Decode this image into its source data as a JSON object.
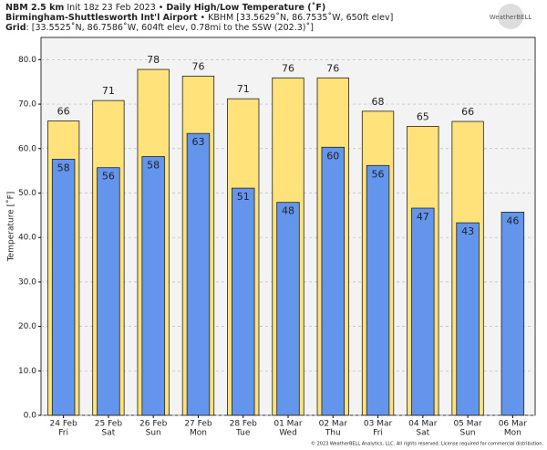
{
  "chart_data": {
    "type": "bar",
    "title_parts": [
      [
        {
          "text": "NBM 2.5 km",
          "bold": true
        },
        {
          "text": " Init 18z 23 Feb 2023 • ",
          "bold": false
        },
        {
          "text": "Daily High/Low Temperature (˚F)",
          "bold": true
        }
      ],
      [
        {
          "text": "Birmingham-Shuttlesworth Int'l Airport",
          "bold": true
        },
        {
          "text": " • KBHM [33.5629˚N, 86.7535˚W, 650ft elev]",
          "bold": false
        }
      ],
      [
        {
          "text": "Grid",
          "bold": true
        },
        {
          "text": ": [33.5525˚N, 86.7586˚W, 604ft elev, 0.78mi to the SSW (202.3)˚]",
          "bold": false
        }
      ]
    ],
    "logo": "WeatherBELL",
    "y_label": "Temperature [˚F]",
    "footer": "© 2023 WeatherBELL Analytics, LLC. All rights reserved. License required for commercial distribution.",
    "categories": [
      "24 Feb",
      "25 Feb",
      "26 Feb",
      "27 Feb",
      "28 Feb",
      "01 Mar",
      "02 Mar",
      "03 Mar",
      "04 Mar",
      "05 Mar",
      "06 Mar"
    ],
    "weekdays": [
      "Fri",
      "Sat",
      "Sun",
      "Mon",
      "Tue",
      "Wed",
      "Thu",
      "Fri",
      "Sat",
      "Sun",
      "Mon"
    ],
    "series": [
      {
        "name": "High",
        "color": "#ffe27a",
        "values": [
          66.2,
          70.8,
          77.8,
          76.3,
          71.2,
          75.9,
          75.9,
          68.4,
          65.0,
          66.1,
          null
        ],
        "value_labels": [
          "66",
          "71",
          "78",
          "76",
          "71",
          "76",
          "76",
          "68",
          "65",
          "66",
          null
        ]
      },
      {
        "name": "Low",
        "color": "#6495ed",
        "values": [
          57.6,
          55.7,
          58.2,
          63.4,
          51.1,
          47.9,
          60.3,
          56.2,
          46.6,
          43.3,
          45.7
        ],
        "value_labels": [
          "58",
          "56",
          "58",
          "63",
          "51",
          "48",
          "60",
          "56",
          "47",
          "43",
          "46"
        ]
      }
    ],
    "ylim": [
      0,
      85
    ],
    "yticks": [
      {
        "value": 0,
        "label": "0.0"
      },
      {
        "value": 10,
        "label": "10.0"
      },
      {
        "value": 20,
        "label": "20.0"
      },
      {
        "value": 30,
        "label": "30.0"
      },
      {
        "value": 40,
        "label": "40.0"
      },
      {
        "value": 50,
        "label": "50.0"
      },
      {
        "value": 60,
        "label": "60.0"
      },
      {
        "value": 70,
        "label": "70.0"
      },
      {
        "value": 80,
        "label": "80.0"
      }
    ],
    "grid": true
  }
}
